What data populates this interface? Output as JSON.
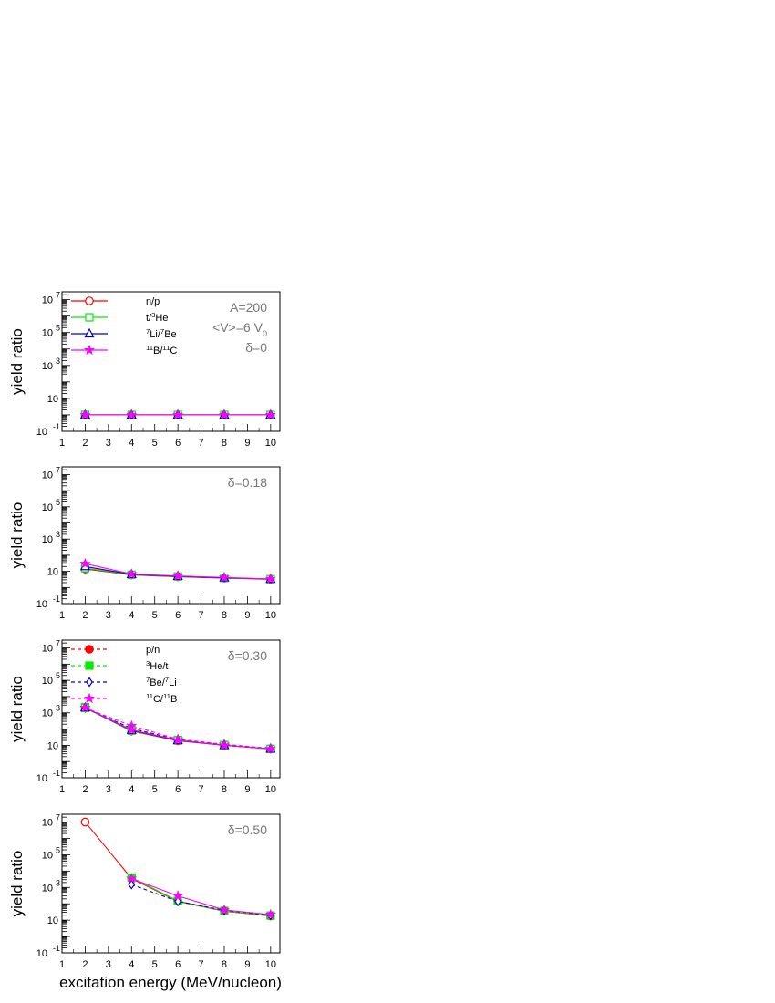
{
  "figure": {
    "ylabel": "yield ratio",
    "xlabel": "excitation energy (MeV/nucleon)"
  },
  "axis": {
    "x_ticks": [
      1,
      2,
      3,
      4,
      5,
      6,
      7,
      8,
      9,
      10
    ],
    "xlim": [
      1,
      10.4
    ],
    "y_scale": "log",
    "ylim": [
      0.1,
      30000000
    ],
    "y_ticks": [
      {
        "value": 0.1,
        "base": "10",
        "exp": "-1"
      },
      {
        "value": 10,
        "base": "10",
        "exp": ""
      },
      {
        "value": 1000,
        "base": "10",
        "exp": "3"
      },
      {
        "value": 100000,
        "base": "10",
        "exp": "5"
      },
      {
        "value": 10000000,
        "base": "10",
        "exp": "7"
      }
    ]
  },
  "colors": {
    "red": "#ff0000",
    "green": "#00ee00",
    "blue": "#0000cc",
    "magenta": "#ff00ff",
    "dark": "#000000",
    "annot": "#777777"
  },
  "chart_data": [
    {
      "type": "line",
      "annotations": [
        "A=200",
        "<V>=6 V",
        "δ=0"
      ],
      "annotation_sub": "0",
      "legend": {
        "placement": "top-left",
        "entries": [
          {
            "label": "n/p"
          },
          {
            "label": "t/",
            "sup": "3",
            "post": "He"
          },
          {
            "label": "",
            "sup": "7",
            "post": "Li/",
            "sup2": "7",
            "post2": "Be"
          },
          {
            "label": "",
            "sup": "11",
            "post": "B/",
            "sup2": "11",
            "post2": "C"
          }
        ]
      },
      "series": [
        {
          "name": "n/p",
          "color": "red",
          "marker": "open-circle",
          "dash": "solid",
          "x": [
            2,
            4,
            6,
            8,
            10
          ],
          "y": [
            1,
            1,
            1,
            1,
            1
          ]
        },
        {
          "name": "t/3He",
          "color": "green",
          "marker": "open-square",
          "dash": "solid",
          "x": [
            2,
            4,
            6,
            8,
            10
          ],
          "y": [
            1,
            1,
            1,
            1,
            1
          ]
        },
        {
          "name": "7Li/7Be",
          "color": "blue",
          "marker": "open-triangle",
          "dash": "solid",
          "x": [
            2,
            4,
            6,
            8,
            10
          ],
          "y": [
            1,
            1,
            1,
            1,
            1
          ]
        },
        {
          "name": "11B/11C",
          "color": "magenta",
          "marker": "star",
          "dash": "solid",
          "x": [
            2,
            4,
            6,
            8,
            10
          ],
          "y": [
            1,
            1,
            1,
            1,
            1
          ]
        }
      ]
    },
    {
      "type": "line",
      "annotations": [
        "δ=0.18"
      ],
      "annotation_sub": "",
      "legend": null,
      "series": [
        {
          "name": "n/p",
          "color": "red",
          "marker": "open-circle",
          "dash": "solid",
          "x": [
            2,
            4,
            6,
            8,
            10
          ],
          "y": [
            14,
            6,
            4.6,
            3.8,
            3.2
          ]
        },
        {
          "name": "t/3He",
          "color": "green",
          "marker": "open-square",
          "dash": "solid",
          "x": [
            2,
            4,
            6,
            8,
            10
          ],
          "y": [
            16,
            6.2,
            4.8,
            3.9,
            3.3
          ]
        },
        {
          "name": "7Li/7Be",
          "color": "blue",
          "marker": "open-triangle",
          "dash": "solid",
          "x": [
            2,
            4,
            6,
            8,
            10
          ],
          "y": [
            20,
            6.5,
            5,
            4,
            3.3
          ]
        },
        {
          "name": "11B/11C",
          "color": "magenta",
          "marker": "star",
          "dash": "solid",
          "x": [
            2,
            4,
            6,
            8,
            10
          ],
          "y": [
            30,
            6.8,
            5.2,
            4.2,
            3.4
          ]
        }
      ]
    },
    {
      "type": "line",
      "annotations": [
        "δ=0.30"
      ],
      "annotation_sub": "",
      "legend": {
        "placement": "top-left",
        "entries": [
          {
            "label": "p/n"
          },
          {
            "label": "",
            "sup": "3",
            "post": "He/t"
          },
          {
            "label": "",
            "sup": "7",
            "post": "Be/",
            "sup2": "7",
            "post2": "Li"
          },
          {
            "label": "",
            "sup": "11",
            "post": "C/",
            "sup2": "11",
            "post2": "B"
          }
        ]
      },
      "series": [
        {
          "name": "p/n",
          "color": "red",
          "marker": "filled-circle",
          "dash": "dashed",
          "x": [
            2,
            4,
            6,
            8,
            10
          ],
          "y": [
            2000,
            80,
            20,
            10,
            6
          ]
        },
        {
          "name": "3He/t",
          "color": "green",
          "marker": "filled-square",
          "dash": "dashed",
          "x": [
            2,
            4,
            6,
            8,
            10
          ],
          "y": [
            2200,
            90,
            21,
            10.5,
            6
          ]
        },
        {
          "name": "7Be/7Li",
          "color": "blue",
          "marker": "open-diamond",
          "dash": "dashed",
          "x": [
            2,
            4,
            6,
            8,
            10
          ],
          "y": [
            2000,
            110,
            22,
            11,
            6.2
          ]
        },
        {
          "name": "11C/11B",
          "color": "magenta",
          "marker": "star",
          "dash": "dashed",
          "x": [
            2,
            4,
            6,
            8,
            10
          ],
          "y": [
            2000,
            160,
            24,
            11.5,
            6.5
          ]
        },
        {
          "name": "n/p",
          "color": "red",
          "marker": "open-circle",
          "dash": "solid",
          "x": [
            2,
            4,
            6,
            8,
            10
          ],
          "y": [
            2000,
            75,
            19,
            10,
            6
          ]
        },
        {
          "name": "t/3He",
          "color": "green",
          "marker": "open-square",
          "dash": "solid",
          "x": [
            2,
            4,
            6,
            8,
            10
          ],
          "y": [
            2000,
            80,
            20,
            10,
            6
          ]
        },
        {
          "name": "7Li/7Be",
          "color": "blue",
          "marker": "open-triangle",
          "dash": "solid",
          "x": [
            2,
            4,
            6,
            8,
            10
          ],
          "y": [
            2100,
            85,
            20,
            10,
            6
          ]
        },
        {
          "name": "11B/11C",
          "color": "magenta",
          "marker": "star",
          "dash": "solid",
          "x": [
            2,
            4,
            6,
            8,
            10
          ],
          "y": [
            2100,
            90,
            21,
            10,
            6
          ]
        }
      ]
    },
    {
      "type": "line",
      "annotations": [
        "δ=0.50"
      ],
      "annotation_sub": "",
      "legend": null,
      "series": [
        {
          "name": "n/p",
          "color": "red",
          "marker": "open-circle",
          "dash": "solid",
          "x": [
            2,
            4,
            6,
            8,
            10
          ],
          "y": [
            10000000,
            3500,
            140,
            35,
            18
          ]
        },
        {
          "name": "t/3He",
          "color": "green",
          "marker": "filled-square",
          "dash": "solid",
          "x": [
            2,
            4,
            6,
            8,
            10
          ],
          "y": [
            null,
            4000,
            150,
            37,
            19
          ]
        },
        {
          "name": "7Be/7Li",
          "color": "blue",
          "marker": "open-diamond",
          "dash": "dashed",
          "x": [
            4,
            6,
            8,
            10
          ],
          "y": [
            1500,
            140,
            40,
            20
          ]
        },
        {
          "name": "11C/11B",
          "color": "magenta",
          "marker": "star",
          "dash": "solid",
          "x": [
            4,
            6,
            8,
            10
          ],
          "y": [
            3500,
            300,
            42,
            22
          ]
        }
      ]
    }
  ]
}
